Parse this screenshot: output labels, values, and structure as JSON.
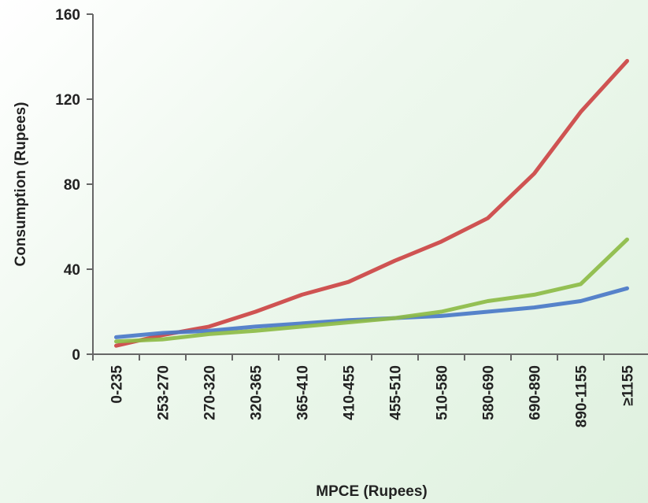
{
  "chart_data": {
    "type": "line",
    "xlabel": "MPCE (Rupees)",
    "ylabel": "Consumption (Rupees)",
    "ylim": [
      0,
      160
    ],
    "yticks": [
      0,
      40,
      80,
      120,
      160
    ],
    "grid": false,
    "categories": [
      "0-235",
      "253-270",
      "270-320",
      "320-365",
      "365-410",
      "410-455",
      "455-510",
      "510-580",
      "580-690",
      "690-890",
      "890-1155",
      "≥1155"
    ],
    "series": [
      {
        "color": "#cc4444",
        "values": [
          4,
          9,
          13,
          20,
          28,
          34,
          44,
          53,
          64,
          85,
          114,
          138
        ]
      },
      {
        "color": "#4a78c8",
        "values": [
          8,
          10,
          11,
          13,
          14.5,
          16,
          17,
          18,
          20,
          22,
          25,
          31
        ]
      },
      {
        "color": "#8dbb46",
        "values": [
          6,
          7,
          9.5,
          11,
          13,
          15,
          17,
          20,
          25,
          28,
          33,
          54
        ]
      }
    ]
  }
}
